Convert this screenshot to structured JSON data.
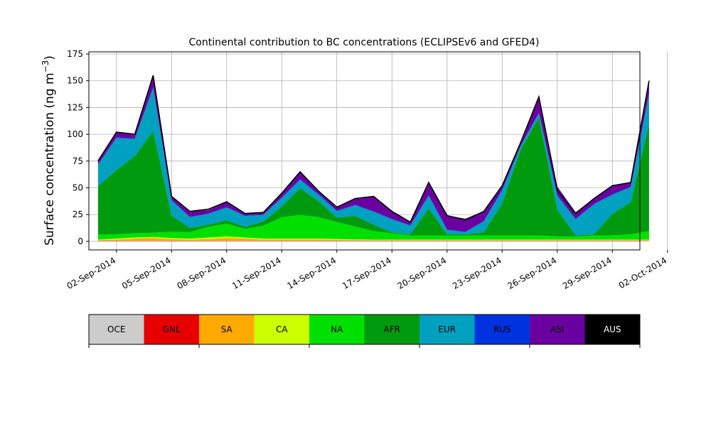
{
  "chart_data": {
    "type": "area",
    "stacked": true,
    "title": "Continental contribution to BC concentrations (ECLIPSEv6 and GFED4)",
    "ylabel_main": "Surface concentration (ng m",
    "ylabel_sup": "−3",
    "ylabel_close": ")",
    "xlabel": "",
    "ylim": [
      -8,
      177
    ],
    "yticks": [
      0,
      25,
      50,
      75,
      100,
      125,
      150,
      175
    ],
    "ytick_labels": [
      "0",
      "25",
      "50",
      "75",
      "100",
      "125",
      "150",
      "175"
    ],
    "xlim": [
      -1.5,
      28.5
    ],
    "xticks": [
      0,
      3,
      6,
      9,
      12,
      15,
      18,
      21,
      24,
      27,
      30
    ],
    "xtick_labels": [
      "02-Sep-2014",
      "05-Sep-2014",
      "08-Sep-2014",
      "11-Sep-2014",
      "14-Sep-2014",
      "17-Sep-2014",
      "20-Sep-2014",
      "23-Sep-2014",
      "26-Sep-2014",
      "29-Sep-2014",
      "02-Oct-2014"
    ],
    "grid": true,
    "x_dates": [
      "01-Sep-2014",
      "02-Sep-2014",
      "03-Sep-2014",
      "04-Sep-2014",
      "05-Sep-2014",
      "06-Sep-2014",
      "07-Sep-2014",
      "08-Sep-2014",
      "09-Sep-2014",
      "10-Sep-2014",
      "11-Sep-2014",
      "12-Sep-2014",
      "13-Sep-2014",
      "14-Sep-2014",
      "15-Sep-2014",
      "16-Sep-2014",
      "17-Sep-2014",
      "18-Sep-2014",
      "19-Sep-2014",
      "20-Sep-2014",
      "21-Sep-2014",
      "22-Sep-2014",
      "23-Sep-2014",
      "24-Sep-2014",
      "25-Sep-2014",
      "26-Sep-2014",
      "27-Sep-2014",
      "28-Sep-2014",
      "29-Sep-2014",
      "30-Sep-2014",
      "01-Oct-2014"
    ],
    "total_x_dates": [
      "01-Sep-2014",
      "02-Sep-2014",
      "03-Sep-2014",
      "04-Sep-2014",
      "05-Sep-2014",
      "06-Sep-2014",
      "07-Sep-2014",
      "08-Sep-2014",
      "09-Sep-2014",
      "10-Sep-2014",
      "11-Sep-2014",
      "12-Sep-2014",
      "13-Sep-2014",
      "14-Sep-2014",
      "15-Sep-2014",
      "16-Sep-2014",
      "17-Sep-2014",
      "18-Sep-2014",
      "19-Sep-2014",
      "20-Sep-2014",
      "21-Sep-2014",
      "22-Sep-2014",
      "23-Sep-2014",
      "24-Sep-2014",
      "25-Sep-2014",
      "26-Sep-2014",
      "27-Sep-2014",
      "28-Sep-2014",
      "29-Sep-2014",
      "30-Sep-2014",
      "01-Oct-2014"
    ],
    "total": [
      75,
      102,
      100,
      155,
      42,
      28,
      30,
      37,
      26,
      27,
      45,
      65,
      47,
      32,
      40,
      42,
      28,
      18,
      55,
      24,
      20,
      28,
      52,
      92,
      135,
      48,
      26,
      40,
      52,
      55,
      150
    ],
    "series": [
      {
        "name": "OCE",
        "color": "#cccccc",
        "values": [
          0.4,
          0.4,
          0.4,
          0.4,
          0.4,
          0.4,
          0.4,
          0.4,
          0.4,
          0.4,
          0.4,
          0.4,
          0.4,
          0.4,
          0.4,
          0.4,
          0.4,
          0.4,
          0.4,
          0.4,
          0.4,
          0.4,
          0.4,
          0.4,
          0.4,
          0.4,
          0.4,
          0.4,
          0.4,
          0.4,
          0.4
        ]
      },
      {
        "name": "GNL",
        "color": "#e60000",
        "values": [
          0.2,
          0.2,
          0.2,
          0.2,
          0.2,
          0.2,
          0.2,
          0.2,
          0.2,
          0.2,
          0.2,
          0.2,
          0.2,
          0.2,
          0.2,
          0.2,
          0.2,
          0.2,
          0.2,
          0.2,
          0.2,
          0.2,
          0.2,
          0.2,
          0.2,
          0.2,
          0.2,
          0.2,
          0.2,
          0.2,
          0.2
        ]
      },
      {
        "name": "SA",
        "color": "#ffaa00",
        "values": [
          0.5,
          1.0,
          2.0,
          2.5,
          1.5,
          1.0,
          1.5,
          2.5,
          2.0,
          1.0,
          1.0,
          1.0,
          1.0,
          0.8,
          0.6,
          0.5,
          0.5,
          0.5,
          0.5,
          0.5,
          0.5,
          0.5,
          0.5,
          0.5,
          0.5,
          0.5,
          0.5,
          0.5,
          0.5,
          0.5,
          0.5
        ]
      },
      {
        "name": "CA",
        "color": "#ccff00",
        "values": [
          0.5,
          1.0,
          1.0,
          1.0,
          1.0,
          1.0,
          1.5,
          1.5,
          1.0,
          1.0,
          1.0,
          1.0,
          1.0,
          0.8,
          0.6,
          0.5,
          0.5,
          0.5,
          0.5,
          0.5,
          0.5,
          0.5,
          0.5,
          0.5,
          0.5,
          0.5,
          0.5,
          0.5,
          0.5,
          0.5,
          0.5
        ]
      },
      {
        "name": "NA",
        "color": "#00e000",
        "values": [
          5,
          4,
          4,
          4,
          6,
          6,
          10,
          12,
          8,
          12,
          20,
          22,
          20,
          16,
          12,
          8,
          6,
          4,
          4,
          4,
          4,
          4,
          4,
          4,
          4,
          3,
          3,
          4,
          4,
          5,
          8
        ]
      },
      {
        "name": "AFR",
        "color": "#009a0e",
        "values": [
          45,
          60,
          72,
          95,
          15,
          4,
          2,
          3,
          2,
          4,
          10,
          25,
          15,
          4,
          10,
          6,
          1,
          1,
          25,
          1,
          1,
          3,
          30,
          80,
          110,
          25,
          1,
          1,
          20,
          30,
          100
        ]
      },
      {
        "name": "EUR",
        "color": "#00a0c0",
        "values": [
          20,
          30,
          16,
          40,
          14,
          10,
          10,
          12,
          10,
          6,
          8,
          8,
          6,
          6,
          10,
          12,
          12,
          8,
          12,
          4,
          2,
          10,
          12,
          3,
          4,
          13,
          15,
          28,
          18,
          14,
          28
        ]
      },
      {
        "name": "RUS",
        "color": "#0033e0",
        "values": [
          0.5,
          0.5,
          0.5,
          0.8,
          0.5,
          0.5,
          0.5,
          0.5,
          0.5,
          0.5,
          0.5,
          0.5,
          0.5,
          0.5,
          0.5,
          0.5,
          0.5,
          0.5,
          0.5,
          0.5,
          0.5,
          0.5,
          0.5,
          0.5,
          0.5,
          0.5,
          0.5,
          0.5,
          0.5,
          0.5,
          0.5
        ]
      },
      {
        "name": "ASI",
        "color": "#6a00a0",
        "values": [
          3.8,
          5.0,
          3.0,
          10.0,
          3.5,
          5.2,
          3.0,
          4.5,
          1.5,
          1.6,
          3.5,
          7.0,
          3.5,
          3.0,
          6.0,
          14.0,
          7.0,
          3.0,
          12.0,
          13.0,
          12.0,
          9.0,
          4.0,
          3.5,
          15.0,
          8.0,
          6.0,
          5.0,
          8.0,
          4.0,
          11.0
        ]
      },
      {
        "name": "AUS",
        "color": "#000000",
        "values": [
          0.1,
          0.1,
          0.1,
          0.1,
          0.1,
          0.1,
          0.1,
          0.1,
          0.1,
          0.1,
          0.1,
          0.1,
          0.1,
          0.1,
          0.1,
          0.1,
          0.1,
          0.1,
          0.1,
          0.1,
          0.1,
          0.1,
          0.1,
          0.1,
          0.1,
          0.1,
          0.1,
          0.1,
          0.1,
          0.1,
          0.1
        ]
      }
    ]
  }
}
